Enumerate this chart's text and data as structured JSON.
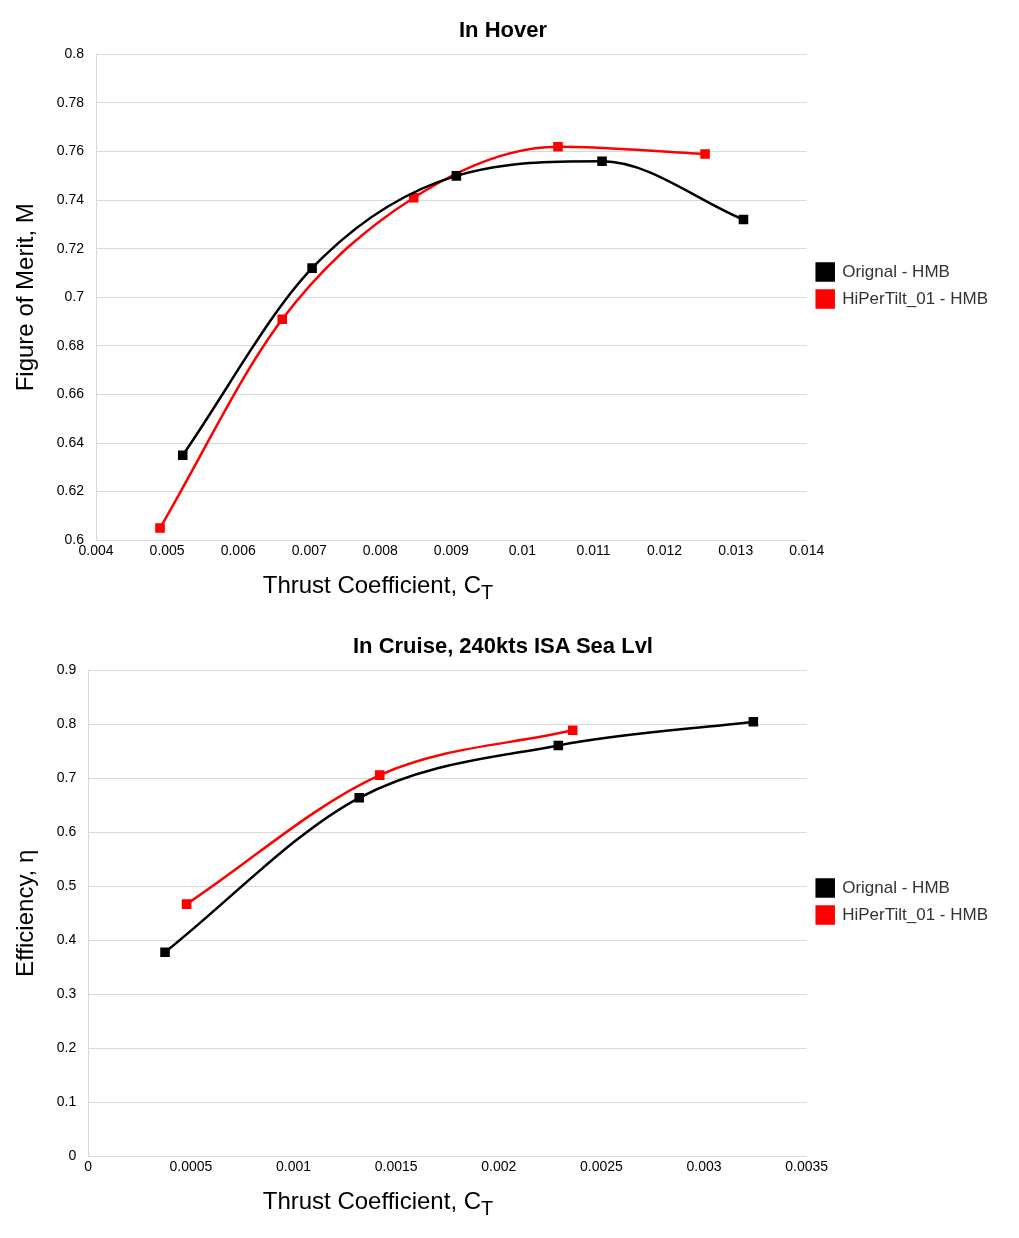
{
  "chart_data": [
    {
      "type": "line",
      "title": "In Hover",
      "xlabel": "Thrust Coefficient, C$_{T}$",
      "ylabel": "Figure of Merit, M",
      "xlim": [
        0.004,
        0.014
      ],
      "xticks": [
        0.004,
        0.005,
        0.006,
        0.007,
        0.008,
        0.009,
        0.01,
        0.011,
        0.012,
        0.013,
        0.014
      ],
      "ylim": [
        0.6,
        0.8
      ],
      "yticks": [
        0.6,
        0.62,
        0.64,
        0.66,
        0.68,
        0.7,
        0.72,
        0.74,
        0.76,
        0.78,
        0.8
      ],
      "grid": "y",
      "legend": "right",
      "marker": "square",
      "line_style": "solid",
      "series": [
        {
          "name": "Orignal - HMB",
          "color": "#000000",
          "x": [
            0.00522,
            0.00704,
            0.00907,
            0.01112,
            0.01311
          ],
          "values": [
            0.635,
            0.712,
            0.75,
            0.756,
            0.732
          ]
        },
        {
          "name": "HiPerTilt_01 - HMB",
          "color": "#ff0000",
          "x": [
            0.0049,
            0.00662,
            0.00847,
            0.0105,
            0.01257
          ],
          "values": [
            0.605,
            0.691,
            0.741,
            0.762,
            0.759
          ]
        }
      ]
    },
    {
      "type": "line",
      "title": "In Cruise, 240kts ISA Sea Lvl",
      "xlabel": "Thrust Coefficient, C$_{T}$",
      "ylabel": "Efficiency, η",
      "xlim": [
        0,
        0.0035
      ],
      "xticks": [
        0,
        0.0005,
        0.001,
        0.0015,
        0.002,
        0.0025,
        0.003,
        0.0035
      ],
      "ylim": [
        0,
        0.9
      ],
      "yticks": [
        0,
        0.1,
        0.2,
        0.3,
        0.4,
        0.5,
        0.6,
        0.7,
        0.8,
        0.9
      ],
      "grid": "y",
      "legend": "right",
      "marker": "square",
      "line_style": "solid",
      "series": [
        {
          "name": "Orignal - HMB",
          "color": "#000000",
          "x": [
            0.000374,
            0.00132,
            0.00229,
            0.00324
          ],
          "values": [
            0.378,
            0.664,
            0.761,
            0.805
          ]
        },
        {
          "name": "HiPerTilt_01 - HMB",
          "color": "#ff0000",
          "x": [
            0.000479,
            0.00142,
            0.00236
          ],
          "values": [
            0.467,
            0.706,
            0.789
          ]
        }
      ]
    }
  ]
}
